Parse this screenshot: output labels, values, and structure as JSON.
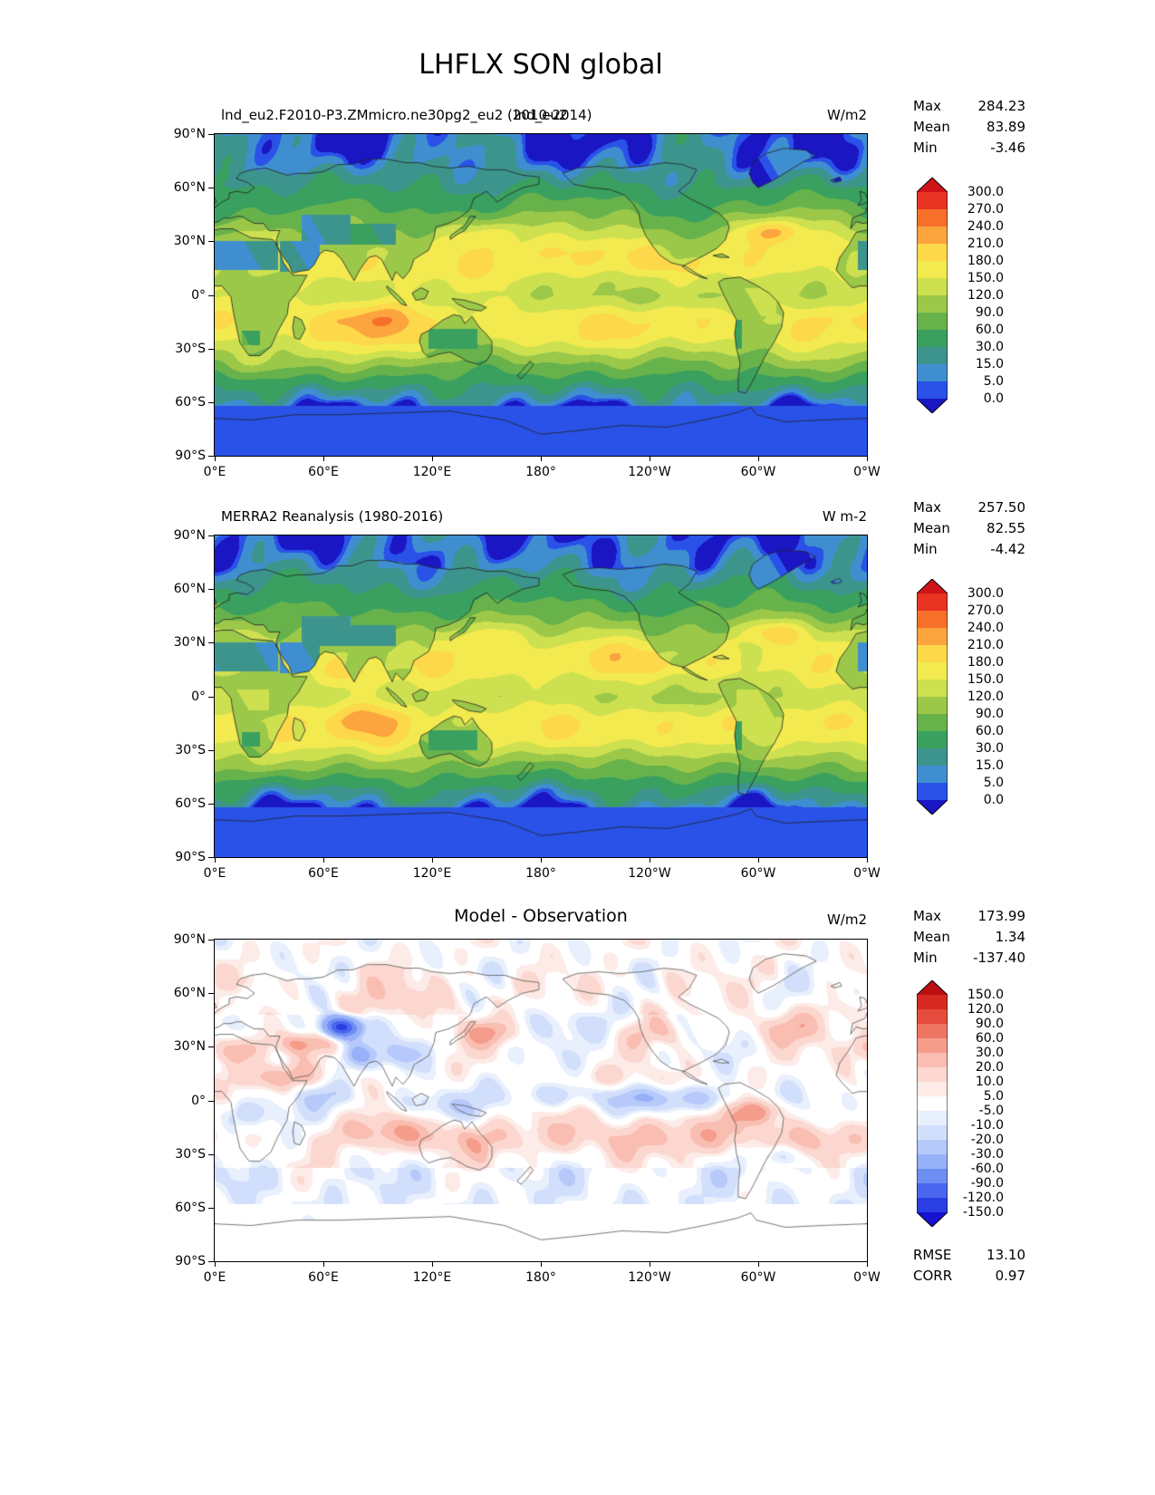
{
  "figure": {
    "title": "LHFLX SON global"
  },
  "axis": {
    "x_ticks": [
      "0°E",
      "60°E",
      "120°E",
      "180°",
      "120°W",
      "60°W",
      "0°W"
    ],
    "y_ticks": [
      "90°N",
      "60°N",
      "30°N",
      "0°",
      "30°S",
      "60°S",
      "90°S"
    ]
  },
  "panels": [
    {
      "title_left": "lnd_eu2.F2010-P3.ZMmicro.ne30pg2_eu2 (2010-2014)",
      "title_center": "lnd_eu2",
      "units": "W/m2",
      "stats": [
        {
          "label": "Max",
          "value": "284.23"
        },
        {
          "label": "Mean",
          "value": "83.89"
        },
        {
          "label": "Min",
          "value": "-3.46"
        }
      ],
      "colorbar_labels": [
        "300.0",
        "270.0",
        "240.0",
        "210.0",
        "180.0",
        "150.0",
        "120.0",
        "90.0",
        "60.0",
        "30.0",
        "15.0",
        "5.0",
        "0.0"
      ]
    },
    {
      "title_left": "MERRA2 Reanalysis (1980-2016)",
      "title_center": "",
      "units": "W m-2",
      "stats": [
        {
          "label": "Max",
          "value": "257.50"
        },
        {
          "label": "Mean",
          "value": "82.55"
        },
        {
          "label": "Min",
          "value": "-4.42"
        }
      ],
      "colorbar_labels": [
        "300.0",
        "270.0",
        "240.0",
        "210.0",
        "180.0",
        "150.0",
        "120.0",
        "90.0",
        "60.0",
        "30.0",
        "15.0",
        "5.0",
        "0.0"
      ]
    },
    {
      "title_left": "",
      "title_center": "Model - Observation",
      "units": "W/m2",
      "stats": [
        {
          "label": "Max",
          "value": "173.99"
        },
        {
          "label": "Mean",
          "value": "1.34"
        },
        {
          "label": "Min",
          "value": "-137.40"
        }
      ],
      "extra_stats": [
        {
          "label": "RMSE",
          "value": "13.10"
        },
        {
          "label": "CORR",
          "value": "0.97"
        }
      ],
      "colorbar_labels": [
        "150.0",
        "120.0",
        "90.0",
        "60.0",
        "30.0",
        "20.0",
        "10.0",
        "5.0",
        "-5.0",
        "-10.0",
        "-20.0",
        "-30.0",
        "-60.0",
        "-90.0",
        "-120.0",
        "-150.0"
      ]
    }
  ],
  "colors": {
    "field_levels": [
      0,
      5,
      15,
      30,
      60,
      90,
      120,
      150,
      180,
      210,
      240,
      270,
      300
    ],
    "field_colors": [
      "#1a16c4",
      "#2a52e8",
      "#3f8fd0",
      "#3d948d",
      "#3aa05f",
      "#67b24b",
      "#9cc84a",
      "#cde04f",
      "#f2ea4f",
      "#fcd84a",
      "#fca43e",
      "#f7702a",
      "#e93323",
      "#cf1419"
    ],
    "diff_levels": [
      -150,
      -120,
      -90,
      -60,
      -30,
      -20,
      -10,
      -5,
      5,
      10,
      20,
      30,
      60,
      90,
      120,
      150
    ],
    "diff_colors": [
      "#1612cf",
      "#2b3ee3",
      "#4a66ee",
      "#6f8ef4",
      "#96b1f8",
      "#b6c9fa",
      "#d2dffc",
      "#e8effd",
      "#ffffff",
      "#fdebe7",
      "#fbd7cf",
      "#f9beb1",
      "#f59c8b",
      "#ef7563",
      "#e54c3e",
      "#d62a22",
      "#bc0f12"
    ],
    "coastline": "#222222",
    "coastline_diff": "#555555"
  },
  "chart_data": {
    "type": "heatmap",
    "title": "LHFLX SON global",
    "variable": "LHFLX",
    "season": "SON",
    "region": "global",
    "projection": "equirectangular",
    "x_ticks": [
      "0°E",
      "60°E",
      "120°E",
      "180°",
      "120°W",
      "60°W",
      "0°W"
    ],
    "y_ticks": [
      "90°N",
      "60°N",
      "30°N",
      "0°",
      "30°S",
      "60°S",
      "90°S"
    ],
    "lon_range": [
      0,
      360
    ],
    "lat_range": [
      -90,
      90
    ],
    "panels": [
      {
        "title": "lnd_eu2.F2010-P3.ZMmicro.ne30pg2_eu2 (2010-2014)",
        "overlay_title": "lnd_eu2",
        "units": "W/m2",
        "max": 284.23,
        "mean": 83.89,
        "min": -3.46,
        "colorbar_levels": [
          0,
          5,
          15,
          30,
          60,
          90,
          120,
          150,
          180,
          210,
          240,
          270,
          300
        ]
      },
      {
        "title": "MERRA2 Reanalysis (1980-2016)",
        "units": "W m-2",
        "max": 257.5,
        "mean": 82.55,
        "min": -4.42,
        "colorbar_levels": [
          0,
          5,
          15,
          30,
          60,
          90,
          120,
          150,
          180,
          210,
          240,
          270,
          300
        ]
      },
      {
        "title": "Model - Observation",
        "units": "W/m2",
        "max": 173.99,
        "mean": 1.34,
        "min": -137.4,
        "rmse": 13.1,
        "corr": 0.97,
        "colorbar_levels": [
          -150,
          -120,
          -90,
          -60,
          -30,
          -20,
          -10,
          -5,
          5,
          10,
          20,
          30,
          60,
          90,
          120,
          150
        ]
      }
    ]
  }
}
